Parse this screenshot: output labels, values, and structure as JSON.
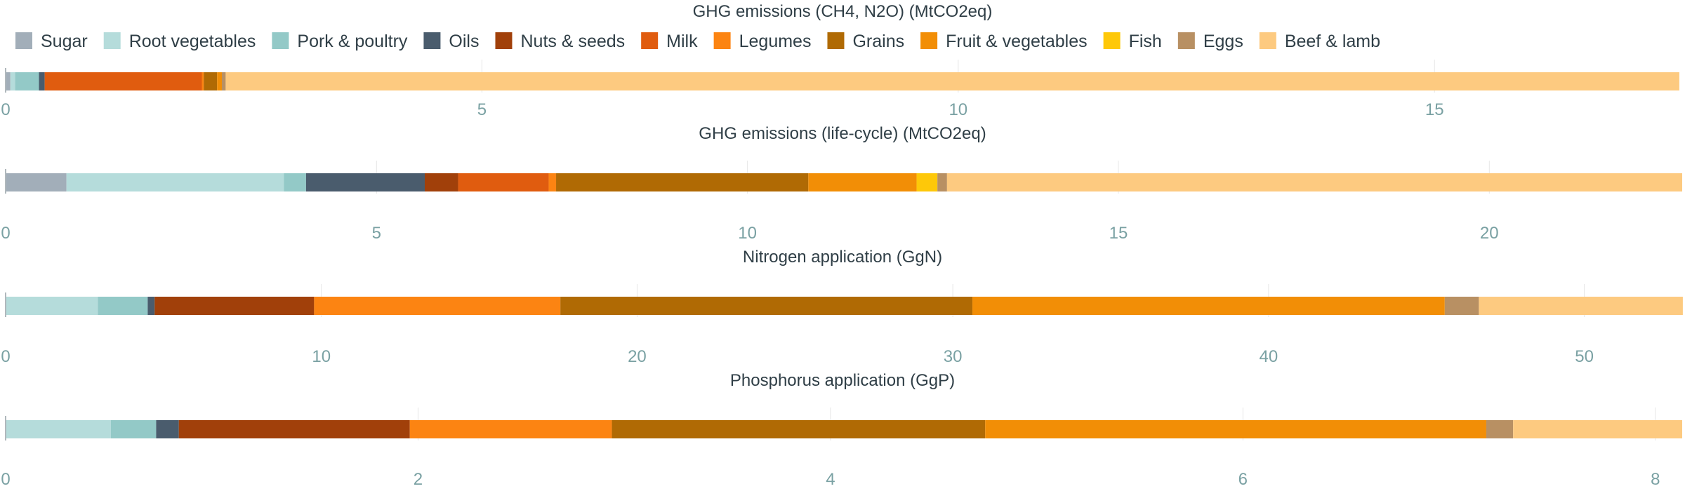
{
  "chart_data": {
    "type": "bar",
    "orientation": "horizontal-stacked",
    "legend": {
      "position": "top-left",
      "items": [
        {
          "name": "Sugar",
          "color": "#a2aeb9"
        },
        {
          "name": "Root vegetables",
          "color": "#b5dcdb"
        },
        {
          "name": "Pork & poultry",
          "color": "#93c9c7"
        },
        {
          "name": "Oils",
          "color": "#4a5c6d"
        },
        {
          "name": "Nuts & seeds",
          "color": "#a1400a"
        },
        {
          "name": "Milk",
          "color": "#e05c0f"
        },
        {
          "name": "Legumes",
          "color": "#fc8412"
        },
        {
          "name": "Grains",
          "color": "#b06a04"
        },
        {
          "name": "Fruit & vegetables",
          "color": "#f28e06"
        },
        {
          "name": "Fish",
          "color": "#fec809"
        },
        {
          "name": "Eggs",
          "color": "#b89063"
        },
        {
          "name": "Beef & lamb",
          "color": "#fdca80"
        }
      ]
    },
    "panels": [
      {
        "title": "GHG emissions (CH4, N2O) (MtCO2eq)",
        "xlim": [
          0,
          17.6
        ],
        "ticks": [
          0,
          5,
          10,
          15
        ],
        "grid": true,
        "values": {
          "Sugar": 0.05,
          "Root vegetables": 0.05,
          "Pork & poultry": 0.25,
          "Oils": 0.06,
          "Nuts & seeds": 0.0,
          "Milk": 1.65,
          "Legumes": 0.02,
          "Grains": 0.14,
          "Fruit & vegetables": 0.05,
          "Fish": 0.0,
          "Eggs": 0.04,
          "Beef & lamb": 15.26
        }
      },
      {
        "title": "GHG emissions (life-cycle) (MtCO2eq)",
        "xlim": [
          0,
          22.6
        ],
        "ticks": [
          0,
          5,
          10,
          15,
          20
        ],
        "grid": true,
        "values": {
          "Sugar": 0.82,
          "Root vegetables": 2.93,
          "Pork & poultry": 0.3,
          "Oils": 1.6,
          "Nuts & seeds": 0.45,
          "Milk": 1.22,
          "Legumes": 0.1,
          "Grains": 3.4,
          "Fruit & vegetables": 1.46,
          "Fish": 0.28,
          "Eggs": 0.13,
          "Beef & lamb": 9.91
        }
      },
      {
        "title": "Nitrogen application (GgN)",
        "xlim": [
          0,
          53.1
        ],
        "ticks": [
          0,
          10,
          20,
          30,
          40,
          50
        ],
        "grid": true,
        "values": {
          "Sugar": 0.0,
          "Root vegetables": 2.92,
          "Pork & poultry": 1.58,
          "Oils": 0.22,
          "Nuts & seeds": 5.05,
          "Milk": 0.0,
          "Legumes": 7.8,
          "Grains": 13.05,
          "Fruit & vegetables": 14.96,
          "Fish": 0.0,
          "Eggs": 1.08,
          "Beef & lamb": 6.46
        }
      },
      {
        "title": "Phosphorus application (GgP)",
        "xlim": [
          0,
          8.13
        ],
        "ticks": [
          0,
          2,
          4,
          6,
          8
        ],
        "grid": true,
        "values": {
          "Sugar": 0.0,
          "Root vegetables": 0.51,
          "Pork & poultry": 0.22,
          "Oils": 0.11,
          "Nuts & seeds": 1.12,
          "Milk": 0.0,
          "Legumes": 0.98,
          "Grains": 1.81,
          "Fruit & vegetables": 2.43,
          "Fish": 0.0,
          "Eggs": 0.13,
          "Beef & lamb": 0.82
        }
      }
    ]
  }
}
